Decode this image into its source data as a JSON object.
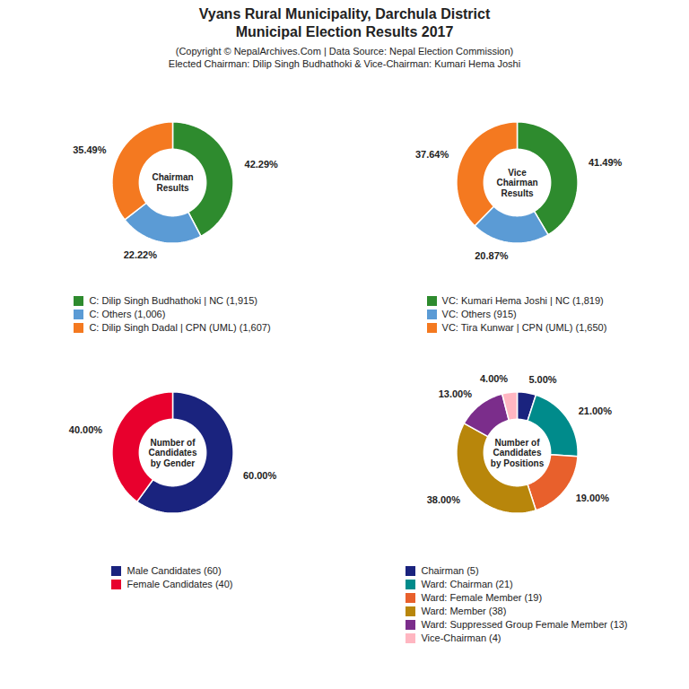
{
  "title": "Vyans Rural Municipality, Darchula District\nMunicipal Election Results 2017",
  "subtitle": "(Copyright © NepalArchives.Com | Data Source: Nepal Election Commission)\nElected Chairman: Dilip Singh Budhathoki & Vice-Chairman: Kumari Hema Joshi",
  "chart_data": [
    {
      "type": "donut",
      "title": "Chairman\nResults",
      "categories": [
        "C: Dilip Singh Budhathoki | NC (1,915)",
        "C: Others (1,006)",
        "C: Dilip Singh Dadal | CPN (UML) (1,607)"
      ],
      "values": [
        42.29,
        22.22,
        35.49
      ],
      "value_labels": [
        "42.29%",
        "22.22%",
        "35.49%"
      ],
      "colors": [
        "#2e8b2e",
        "#5b9bd5",
        "#f47920"
      ],
      "data_labels": true,
      "legend": "bottom"
    },
    {
      "type": "donut",
      "title": "Vice\nChairman\nResults",
      "categories": [
        "VC: Kumari Hema Joshi | NC (1,819)",
        "VC: Others (915)",
        "VC: Tira Kunwar | CPN (UML) (1,650)"
      ],
      "values": [
        41.49,
        20.87,
        37.64
      ],
      "value_labels": [
        "41.49%",
        "20.87%",
        "37.64%"
      ],
      "colors": [
        "#2e8b2e",
        "#5b9bd5",
        "#f47920"
      ],
      "data_labels": true,
      "legend": "bottom"
    },
    {
      "type": "donut",
      "title": "Number of\nCandidates\nby Gender",
      "categories": [
        "Male Candidates (60)",
        "Female Candidates (40)"
      ],
      "values": [
        60.0,
        40.0
      ],
      "value_labels": [
        "60.00%",
        "40.00%"
      ],
      "colors": [
        "#1a237e",
        "#e8002d"
      ],
      "data_labels": true,
      "legend": "bottom"
    },
    {
      "type": "donut",
      "title": "Number of\nCandidates\nby Positions",
      "categories": [
        "Chairman (5)",
        "Ward: Chairman (21)",
        "Ward: Female Member (19)",
        "Ward: Member (38)",
        "Ward: Suppressed Group Female Member (13)",
        "Vice-Chairman (4)"
      ],
      "values": [
        5.0,
        21.0,
        19.0,
        38.0,
        13.0,
        4.0
      ],
      "value_labels": [
        "5.00%",
        "21.00%",
        "19.00%",
        "38.00%",
        "13.00%",
        "4.00%"
      ],
      "colors": [
        "#1a237e",
        "#008b8b",
        "#e8602c",
        "#b8860b",
        "#7b2d8b",
        "#ffb6c1"
      ],
      "data_labels": true,
      "legend": "bottom"
    }
  ]
}
